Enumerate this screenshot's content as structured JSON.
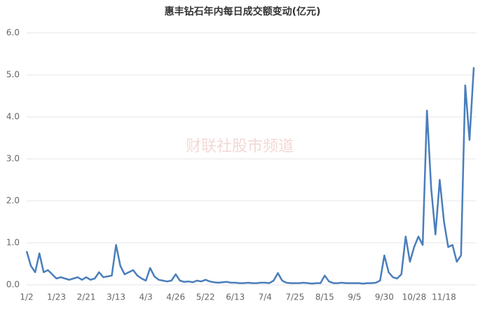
{
  "chart_data": {
    "type": "line",
    "title": "惠丰钻石年内每日成交额变动(亿元)",
    "watermark": "财联社股市频道",
    "categories": [
      "1/2",
      null,
      null,
      null,
      null,
      null,
      null,
      "1/23",
      null,
      null,
      null,
      null,
      null,
      null,
      "2/21",
      null,
      null,
      null,
      null,
      null,
      null,
      "3/13",
      null,
      null,
      null,
      null,
      null,
      null,
      "4/3",
      null,
      null,
      null,
      null,
      null,
      null,
      "4/26",
      null,
      null,
      null,
      null,
      null,
      null,
      "5/22",
      null,
      null,
      null,
      null,
      null,
      null,
      "6/13",
      null,
      null,
      null,
      null,
      null,
      null,
      "7/4",
      null,
      null,
      null,
      null,
      null,
      null,
      "7/25",
      null,
      null,
      null,
      null,
      null,
      null,
      "8/15",
      null,
      null,
      null,
      null,
      null,
      null,
      "9/5",
      null,
      null,
      null,
      null,
      null,
      null,
      "9/30",
      null,
      null,
      null,
      null,
      null,
      null,
      "10/28",
      null,
      null,
      null,
      null,
      null,
      null,
      "11/18",
      null,
      null,
      null,
      null,
      null,
      null,
      null
    ],
    "series": [
      {
        "name": "成交额",
        "color": "#4a7ebb",
        "values": [
          0.8,
          0.45,
          0.3,
          0.75,
          0.3,
          0.35,
          0.25,
          0.15,
          0.18,
          0.15,
          0.12,
          0.15,
          0.18,
          0.12,
          0.18,
          0.12,
          0.15,
          0.3,
          0.18,
          0.2,
          0.22,
          0.95,
          0.45,
          0.25,
          0.3,
          0.35,
          0.22,
          0.15,
          0.1,
          0.4,
          0.2,
          0.12,
          0.1,
          0.08,
          0.1,
          0.25,
          0.1,
          0.07,
          0.08,
          0.06,
          0.1,
          0.08,
          0.12,
          0.08,
          0.06,
          0.05,
          0.06,
          0.07,
          0.05,
          0.05,
          0.04,
          0.04,
          0.05,
          0.04,
          0.04,
          0.05,
          0.05,
          0.04,
          0.1,
          0.28,
          0.1,
          0.05,
          0.04,
          0.04,
          0.04,
          0.05,
          0.04,
          0.03,
          0.04,
          0.04,
          0.22,
          0.08,
          0.04,
          0.04,
          0.05,
          0.04,
          0.04,
          0.04,
          0.04,
          0.03,
          0.04,
          0.04,
          0.05,
          0.1,
          0.7,
          0.3,
          0.18,
          0.15,
          0.25,
          1.15,
          0.55,
          0.9,
          1.15,
          0.95,
          4.15,
          2.3,
          1.2,
          2.5,
          1.5,
          0.9,
          0.95,
          0.55,
          0.7,
          4.75,
          3.45,
          5.18
        ]
      }
    ],
    "ylim": [
      0,
      6
    ],
    "yticks": [
      {
        "value": 0,
        "label": "0.0"
      },
      {
        "value": 1,
        "label": "1.0"
      },
      {
        "value": 2,
        "label": "2.0"
      },
      {
        "value": 3,
        "label": "3.0"
      },
      {
        "value": 4,
        "label": "4.0"
      },
      {
        "value": 5,
        "label": "5.0"
      },
      {
        "value": 6,
        "label": "6.0"
      }
    ],
    "grid": true
  }
}
